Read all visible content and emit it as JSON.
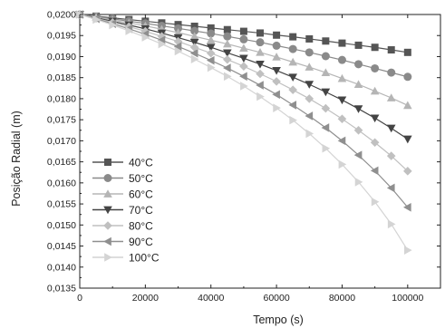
{
  "chart_data": {
    "type": "line",
    "title": "",
    "xlabel": "Tempo (s)",
    "ylabel": "Posição Radial (m)",
    "xlim": [
      0,
      110000
    ],
    "ylim": [
      0.0135,
      0.02
    ],
    "xticks": [
      0,
      20000,
      40000,
      60000,
      80000,
      100000
    ],
    "xtick_labels": [
      "0",
      "20000",
      "40000",
      "60000",
      "80000",
      "100000"
    ],
    "yticks": [
      0.0135,
      0.014,
      0.0145,
      0.015,
      0.0155,
      0.016,
      0.0165,
      0.017,
      0.0175,
      0.018,
      0.0185,
      0.019,
      0.0195,
      0.02
    ],
    "ytick_labels": [
      "0,0135",
      "0,0140",
      "0,0145",
      "0,0150",
      "0,0155",
      "0,0160",
      "0,0165",
      "0,0170",
      "0,0175",
      "0,0180",
      "0,0185",
      "0,0190",
      "0,0195",
      "0,0200"
    ],
    "grid": false,
    "legend_position": "bottom-left",
    "x": [
      0,
      5000,
      10000,
      15000,
      20000,
      25000,
      30000,
      35000,
      40000,
      45000,
      50000,
      55000,
      60000,
      65000,
      70000,
      75000,
      80000,
      85000,
      90000,
      95000,
      100000
    ],
    "series": [
      {
        "name": "40°C",
        "marker": "square",
        "color": "#555555",
        "values": [
          0.02,
          0.01996,
          0.01992,
          0.01988,
          0.01984,
          0.0198,
          0.01976,
          0.01972,
          0.01968,
          0.01964,
          0.0196,
          0.01956,
          0.01951,
          0.01947,
          0.01942,
          0.01937,
          0.01932,
          0.01927,
          0.01922,
          0.01916,
          0.0191
        ]
      },
      {
        "name": "50°C",
        "marker": "circle",
        "color": "#8a8a8a",
        "values": [
          0.02,
          0.01995,
          0.0199,
          0.01984,
          0.01979,
          0.01973,
          0.01967,
          0.01961,
          0.01955,
          0.01948,
          0.01941,
          0.01934,
          0.01926,
          0.01918,
          0.0191,
          0.01901,
          0.01892,
          0.01882,
          0.01872,
          0.01862,
          0.01852
        ]
      },
      {
        "name": "60°C",
        "marker": "triangle-up",
        "color": "#b5b5b5",
        "values": [
          0.02,
          0.01994,
          0.01987,
          0.0198,
          0.01973,
          0.01965,
          0.01957,
          0.01948,
          0.01939,
          0.0193,
          0.0192,
          0.0191,
          0.01899,
          0.01887,
          0.01875,
          0.01862,
          0.01848,
          0.01834,
          0.01818,
          0.01802,
          0.01784
        ]
      },
      {
        "name": "70°C",
        "marker": "triangle-down",
        "color": "#444444",
        "values": [
          0.02,
          0.01992,
          0.01984,
          0.01975,
          0.01966,
          0.01956,
          0.01945,
          0.01934,
          0.01922,
          0.01909,
          0.01896,
          0.01882,
          0.01867,
          0.01851,
          0.01834,
          0.01816,
          0.01797,
          0.01776,
          0.01754,
          0.0173,
          0.01704
        ]
      },
      {
        "name": "80°C",
        "marker": "diamond",
        "color": "#c0c0c0",
        "values": [
          0.02,
          0.01991,
          0.01981,
          0.01971,
          0.0196,
          0.01948,
          0.01936,
          0.01922,
          0.01908,
          0.01893,
          0.01877,
          0.01859,
          0.01841,
          0.01821,
          0.018,
          0.01777,
          0.01752,
          0.01725,
          0.01696,
          0.01664,
          0.01628
        ]
      },
      {
        "name": "90°C",
        "marker": "triangle-left",
        "color": "#8f8f8f",
        "values": [
          0.02,
          0.0199,
          0.01978,
          0.01966,
          0.01953,
          0.01939,
          0.01924,
          0.01908,
          0.01891,
          0.01873,
          0.01853,
          0.01832,
          0.0181,
          0.01785,
          0.01759,
          0.01731,
          0.017,
          0.01666,
          0.01629,
          0.01588,
          0.01542
        ]
      },
      {
        "name": "100°C",
        "marker": "triangle-right",
        "color": "#d4d4d4",
        "values": [
          0.02,
          0.01988,
          0.01975,
          0.01961,
          0.01946,
          0.0193,
          0.01913,
          0.01894,
          0.01874,
          0.01853,
          0.0183,
          0.01805,
          0.01778,
          0.01749,
          0.01717,
          0.01682,
          0.01644,
          0.01602,
          0.01555,
          0.01502,
          0.0144
        ]
      }
    ]
  }
}
